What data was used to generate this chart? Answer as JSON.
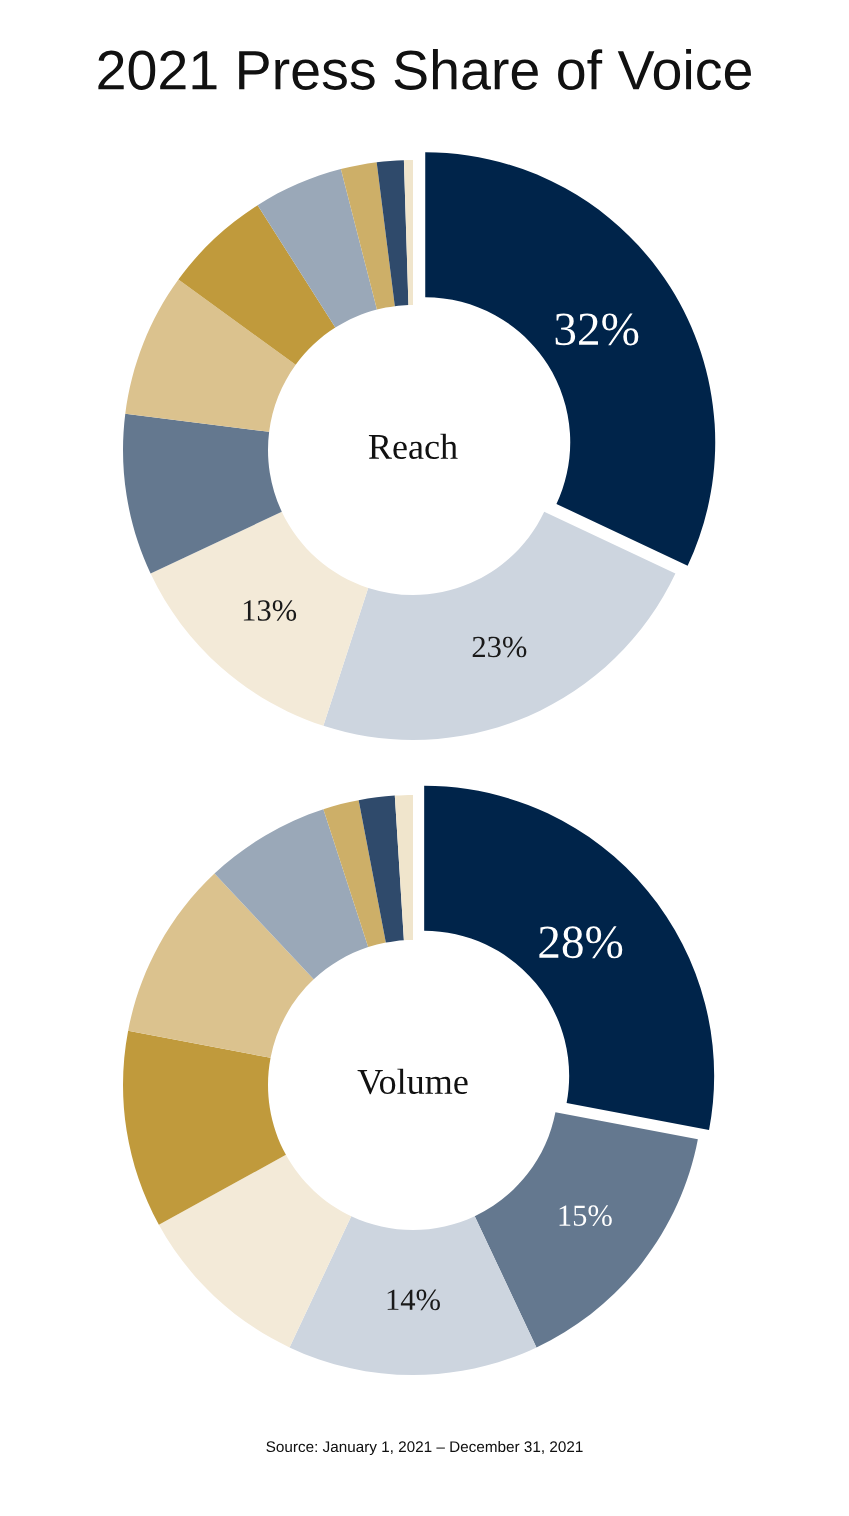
{
  "chart_data": [
    {
      "type": "donut",
      "title": "2021 Press Share of Voice",
      "subtitle": "Reach",
      "categories": [
        null,
        null,
        null,
        null,
        null,
        null,
        null,
        null,
        null,
        null
      ],
      "values": [
        32,
        23,
        13,
        9,
        8,
        6,
        5,
        2,
        1.5,
        0.5
      ],
      "colors": [
        "#00244a",
        "#cdd5df",
        "#f3ead8",
        "#64788f",
        "#dbc28e",
        "#c09a3c",
        "#9aa8b8",
        "#cdaf68",
        "#2f4a6b",
        "#f0e5cc"
      ],
      "value_labels": [
        "32%",
        "23%",
        "13%",
        null,
        null,
        null,
        null,
        null,
        null,
        null
      ]
    },
    {
      "type": "donut",
      "subtitle": "Volume",
      "categories": [
        null,
        null,
        null,
        null,
        null,
        null,
        null,
        null,
        null,
        null
      ],
      "values": [
        28,
        15,
        14,
        10,
        11,
        10,
        7,
        2,
        2,
        1
      ],
      "colors": [
        "#00244a",
        "#64788f",
        "#cdd5df",
        "#f3ead8",
        "#c09a3c",
        "#dbc28e",
        "#9aa8b8",
        "#cdaf68",
        "#2f4a6b",
        "#f0e5cc"
      ],
      "value_labels": [
        "28%",
        "15%",
        "14%",
        null,
        null,
        null,
        null,
        null,
        null,
        null
      ],
      "annotations": [
        "Source: January 1, 2021 – December 31, 2021"
      ]
    }
  ]
}
